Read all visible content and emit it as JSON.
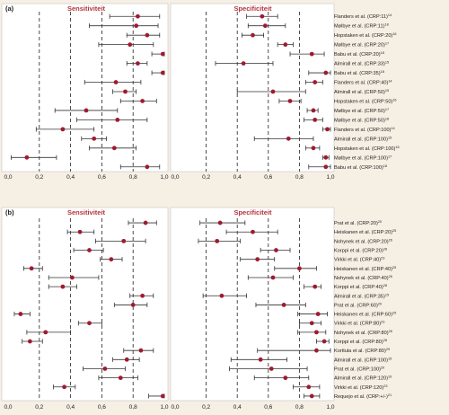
{
  "colors": {
    "background": "#f6efe4",
    "panel": "#ffffff",
    "marker": "#9e1b32",
    "header": "#b5353c",
    "whisker": "#333333"
  },
  "chart_data": [
    {
      "type": "forest",
      "panel_label": "(a)",
      "left_title": "Sensitiviteit",
      "right_title": "Specificiteit",
      "xlim": [
        0,
        1
      ],
      "x_ticks": [
        "0,0",
        "0,2",
        "0,4",
        "0,6",
        "0,8",
        "1,0"
      ],
      "rows": [
        {
          "study": "Flanders et al. (CRP:11)",
          "ref": "14",
          "sens": [
            0.83,
            0.65,
            0.97
          ],
          "spec": [
            0.56,
            0.46,
            0.66
          ]
        },
        {
          "study": "Mølbye et al. (CRP:11)",
          "ref": "18",
          "sens": [
            0.82,
            0.52,
            0.96
          ],
          "spec": [
            0.58,
            0.47,
            0.71
          ]
        },
        {
          "study": "Hopstaken et al. (CRP:20)",
          "ref": "16",
          "sens": [
            0.89,
            0.76,
            0.97
          ],
          "spec": [
            0.5,
            0.43,
            0.57
          ]
        },
        {
          "study": "Mølbye et al. (CRP:20)",
          "ref": "17",
          "sens": [
            0.78,
            0.58,
            0.93
          ],
          "spec": [
            0.71,
            0.66,
            0.76
          ]
        },
        {
          "study": "Babu et al. (CRP:20)",
          "ref": "18",
          "sens": [
            0.99,
            0.92,
            1.0
          ],
          "spec": [
            0.88,
            0.74,
            0.96
          ]
        },
        {
          "study": "Almirall et al. (CRP:33)",
          "ref": "15",
          "sens": [
            0.83,
            0.76,
            0.89
          ],
          "spec": [
            0.44,
            0.26,
            0.63
          ]
        },
        {
          "study": "Babu et al. (CRP:35)",
          "ref": "18",
          "sens": [
            0.99,
            0.92,
            1.0
          ],
          "spec": [
            0.97,
            0.86,
            1.0
          ]
        },
        {
          "study": "Flanders et al. (CRP:40)",
          "ref": "14",
          "sens": [
            0.69,
            0.49,
            0.85
          ],
          "spec": [
            0.9,
            0.84,
            0.95
          ]
        },
        {
          "study": "Almirall et al. (CRP:50)",
          "ref": "15",
          "sens": [
            0.75,
            0.67,
            0.82
          ],
          "spec": [
            0.63,
            0.4,
            0.84
          ]
        },
        {
          "study": "Hopstaken et al. (CRP:50)",
          "ref": "16",
          "sens": [
            0.86,
            0.72,
            0.95
          ],
          "spec": [
            0.74,
            0.67,
            0.81
          ]
        },
        {
          "study": "Mølbye et al. (CRP:50)",
          "ref": "17",
          "sens": [
            0.5,
            0.3,
            0.7
          ],
          "spec": [
            0.89,
            0.85,
            0.92
          ]
        },
        {
          "study": "Mølbye et al. (CRP:50)",
          "ref": "18",
          "sens": [
            0.7,
            0.44,
            0.89
          ],
          "spec": [
            0.9,
            0.83,
            0.95
          ]
        },
        {
          "study": "Flanders et al. (CRP:100)",
          "ref": "14",
          "sens": [
            0.35,
            0.18,
            0.55
          ],
          "spec": [
            0.98,
            0.95,
            1.0
          ]
        },
        {
          "study": "Almirall et al. (CRP:100)",
          "ref": "15",
          "sens": [
            0.55,
            0.47,
            0.63
          ],
          "spec": [
            0.73,
            0.51,
            0.89
          ]
        },
        {
          "study": "Hopstaken et al. (CRP:100)",
          "ref": "16",
          "sens": [
            0.68,
            0.52,
            0.82
          ],
          "spec": [
            0.89,
            0.84,
            0.93
          ]
        },
        {
          "study": "Mølbye et al. (CRP:100)",
          "ref": "17",
          "sens": [
            0.12,
            0.02,
            0.31
          ],
          "spec": [
            0.97,
            0.95,
            0.99
          ]
        },
        {
          "study": "Babu et al. (CRP:100)",
          "ref": "18",
          "sens": [
            0.89,
            0.72,
            0.97
          ],
          "spec": [
            0.97,
            0.86,
            1.0
          ]
        }
      ]
    },
    {
      "type": "forest",
      "panel_label": "(b)",
      "left_title": "Sensitiviteit",
      "right_title": "Specificiteit",
      "xlim": [
        0,
        1
      ],
      "x_ticks": [
        "0,0",
        "0,2",
        "0,4",
        "0,6",
        "0,8",
        "1,0"
      ],
      "rows": [
        {
          "study": "Prat et al. (CRP:20)",
          "ref": "20",
          "sens": [
            0.88,
            0.77,
            0.95
          ],
          "spec": [
            0.29,
            0.16,
            0.45
          ]
        },
        {
          "study": "Heiskanen et al. (CRP:20)",
          "ref": "25",
          "sens": [
            0.46,
            0.38,
            0.55
          ],
          "spec": [
            0.5,
            0.33,
            0.66
          ]
        },
        {
          "study": "Nohynek et al. (CRP:20)",
          "ref": "26",
          "sens": [
            0.74,
            0.56,
            0.88
          ],
          "spec": [
            0.27,
            0.15,
            0.42
          ]
        },
        {
          "study": "Korppi et al. (CRP:20)",
          "ref": "28",
          "sens": [
            0.52,
            0.42,
            0.61
          ],
          "spec": [
            0.65,
            0.55,
            0.74
          ]
        },
        {
          "study": "Virkki et al. (CRP:40)",
          "ref": "23",
          "sens": [
            0.66,
            0.59,
            0.73
          ],
          "spec": [
            0.53,
            0.42,
            0.64
          ]
        },
        {
          "study": "Heiskanen et al. (CRP:40)",
          "ref": "25",
          "sens": [
            0.15,
            0.1,
            0.22
          ],
          "spec": [
            0.8,
            0.64,
            0.91
          ]
        },
        {
          "study": "Nohynek et al. (CRP:40)",
          "ref": "26",
          "sens": [
            0.41,
            0.26,
            0.58
          ],
          "spec": [
            0.63,
            0.47,
            0.76
          ]
        },
        {
          "study": "Korppi et al. (CRP:40)",
          "ref": "28",
          "sens": [
            0.35,
            0.26,
            0.44
          ],
          "spec": [
            0.9,
            0.83,
            0.94
          ]
        },
        {
          "study": "Almirall et al. (CRP:35)",
          "ref": "15",
          "sens": [
            0.86,
            0.78,
            0.93
          ],
          "spec": [
            0.3,
            0.18,
            0.46
          ]
        },
        {
          "study": "Prat et al. (CRP:60)",
          "ref": "20",
          "sens": [
            0.8,
            0.68,
            0.89
          ],
          "spec": [
            0.7,
            0.52,
            0.84
          ]
        },
        {
          "study": "Heiskanen et al. (CRP:60)",
          "ref": "25",
          "sens": [
            0.08,
            0.04,
            0.14
          ],
          "spec": [
            0.92,
            0.79,
            0.98
          ]
        },
        {
          "study": "Virkki et al. (CRP:80)",
          "ref": "23",
          "sens": [
            0.52,
            0.45,
            0.6
          ],
          "spec": [
            0.88,
            0.8,
            0.94
          ]
        },
        {
          "study": "Nohynek et al. (CRP:80)",
          "ref": "26",
          "sens": [
            0.24,
            0.12,
            0.4
          ],
          "spec": [
            0.91,
            0.79,
            0.97
          ]
        },
        {
          "study": "Korppi et al. (CRP:80)",
          "ref": "28",
          "sens": [
            0.14,
            0.09,
            0.22
          ],
          "spec": [
            0.96,
            0.91,
            0.99
          ]
        },
        {
          "study": "Korttula et al. (CRP:80)",
          "ref": "29",
          "sens": [
            0.85,
            0.74,
            0.93
          ],
          "spec": [
            0.91,
            0.53,
            1.0
          ]
        },
        {
          "study": "Almirall et al. (CRP:100)",
          "ref": "15",
          "sens": [
            0.76,
            0.67,
            0.84
          ],
          "spec": [
            0.55,
            0.36,
            0.72
          ]
        },
        {
          "study": "Prat et al. (CRP:100)",
          "ref": "20",
          "sens": [
            0.62,
            0.48,
            0.75
          ],
          "spec": [
            0.62,
            0.35,
            0.85
          ]
        },
        {
          "study": "Almirall et al. (CRP:120)",
          "ref": "19",
          "sens": [
            0.72,
            0.58,
            0.83
          ],
          "spec": [
            0.71,
            0.51,
            0.86
          ]
        },
        {
          "study": "Virkki et al. (CRP:120)",
          "ref": "23",
          "sens": [
            0.36,
            0.29,
            0.43
          ],
          "spec": [
            0.86,
            0.76,
            0.93
          ]
        },
        {
          "study": "Requejo et al. (CRP:+/-)",
          "ref": "21",
          "sens": [
            0.99,
            0.9,
            1.0
          ],
          "spec": [
            0.88,
            0.83,
            0.93
          ]
        }
      ]
    }
  ]
}
